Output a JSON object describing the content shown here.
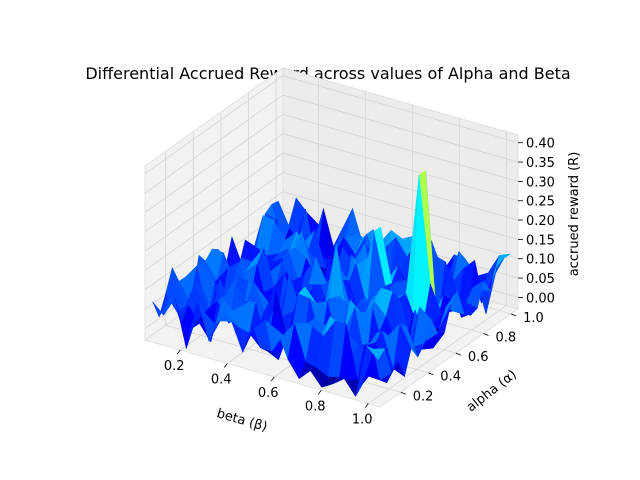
{
  "chart_data": {
    "type": "surface3d",
    "title": "Differential Accrued Reward across values of Alpha and Beta",
    "xlabel": "beta (β)",
    "ylabel": "alpha (α)",
    "zlabel": "accrued reward (R)",
    "xlim": [
      0.05,
      1.05
    ],
    "ylim": [
      0.05,
      1.05
    ],
    "zlim": [
      -0.03,
      0.42
    ],
    "x_ticks": [
      "0.2",
      "0.4",
      "0.6",
      "0.8",
      "1.0"
    ],
    "y_ticks": [
      "0.2",
      "0.4",
      "0.6",
      "0.8",
      "1.0"
    ],
    "z_ticks": [
      "0.00",
      "0.05",
      "0.10",
      "0.15",
      "0.20",
      "0.25",
      "0.30",
      "0.35",
      "0.40"
    ],
    "colormap": "jet",
    "grid": true,
    "grid_resolution": 20,
    "peaks": [
      {
        "beta": 0.72,
        "alpha": 0.62,
        "reward": 0.37
      },
      {
        "beta": 0.83,
        "alpha": 0.72,
        "reward": 0.37
      },
      {
        "beta": 0.62,
        "alpha": 0.52,
        "reward": 0.2
      },
      {
        "beta": 0.64,
        "alpha": 0.72,
        "reward": 0.19
      }
    ],
    "baseline_reward_range": [
      -0.03,
      0.12
    ]
  }
}
